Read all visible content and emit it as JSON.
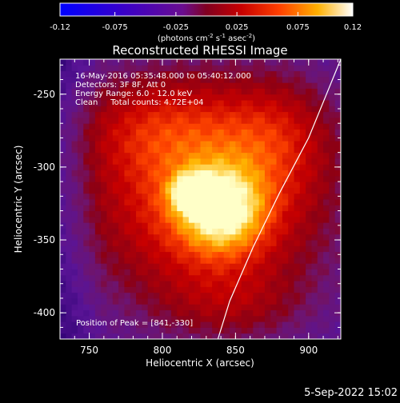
{
  "chart_data": {
    "type": "heatmap",
    "title": "Reconstructed RHESSI Image",
    "xlabel": "Heliocentric X (arcsec)",
    "ylabel": "Heliocentric Y (arcsec)",
    "xlim": [
      730,
      922
    ],
    "ylim": [
      -418,
      -226
    ],
    "x_ticks": [
      750,
      800,
      850,
      900
    ],
    "y_ticks": [
      -250,
      -300,
      -350,
      -400
    ],
    "annotations": [
      "16-May-2016 05:35:48.000 to 05:40:12.000",
      "Detectors: 3F 8F, Att 0",
      "Energy Range: 6.0 - 12.0 keV",
      "Clean     Total counts: 4.72E+04"
    ],
    "peak_label": "Position of Peak = [841,-330]",
    "peak": [
      841,
      -330
    ],
    "colorbar": {
      "min": -0.12,
      "max": 0.12,
      "ticks": [
        "-0.12",
        "-0.075",
        "-0.025",
        "0.025",
        "0.075",
        "0.12"
      ],
      "unit_label": "(photons cm",
      "unit_sup1": "-2",
      "unit_mid": " s",
      "unit_sup2": "-1",
      "unit_mid2": " asec",
      "unit_sup3": "-2",
      "unit_end": ")"
    },
    "limb_curve": [
      [
        922,
        -226
      ],
      [
        900,
        -280
      ],
      [
        880,
        -318
      ],
      [
        862,
        -355
      ],
      [
        846,
        -392
      ],
      [
        838,
        -418
      ]
    ],
    "grid": false
  },
  "timestamp": "5-Sep-2022 15:02"
}
